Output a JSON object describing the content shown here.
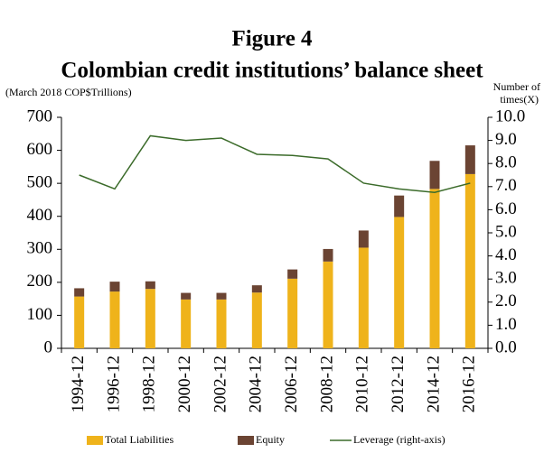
{
  "chart_data": {
    "type": "bar-line",
    "title": "Figure 4",
    "subtitle": "Colombian credit institutions’ balance sheet",
    "ylabel": "(March 2018 COP$Trillions)",
    "y2label": [
      "Number of",
      "times(X)"
    ],
    "categories": [
      "1994-12",
      "1996-12",
      "1998-12",
      "2000-12",
      "2002-12",
      "2004-12",
      "2006-12",
      "2008-12",
      "2010-12",
      "2012-12",
      "2014-12",
      "2016-12"
    ],
    "series": [
      {
        "name": "Total Liabilities",
        "type": "bar",
        "color": "#efb31b",
        "values": [
          157,
          172,
          180,
          148,
          148,
          169,
          211,
          263,
          305,
          398,
          483,
          528
        ]
      },
      {
        "name": "Equity",
        "type": "bar",
        "color": "#6b4433",
        "values": [
          25,
          30,
          23,
          20,
          20,
          22,
          28,
          38,
          52,
          65,
          85,
          87
        ]
      },
      {
        "name": "Leverage (right-axis)",
        "type": "line",
        "axis": "y2",
        "color": "#3b6b2a",
        "values": [
          7.5,
          6.9,
          9.2,
          9.0,
          9.1,
          8.4,
          8.35,
          8.2,
          7.15,
          6.9,
          6.75,
          7.15
        ]
      }
    ],
    "ylim": [
      0,
      700
    ],
    "yticks": [
      0,
      100,
      200,
      300,
      400,
      500,
      600,
      700
    ],
    "y2lim": [
      0,
      10
    ],
    "y2ticks": [
      {
        "value": 0,
        "label": "0.0"
      },
      {
        "value": 1,
        "label": "1.0"
      },
      {
        "value": 2,
        "label": "2.0"
      },
      {
        "value": 3,
        "label": "3.0"
      },
      {
        "value": 4,
        "label": "4.0"
      },
      {
        "value": 5,
        "label": "5.0"
      },
      {
        "value": 6,
        "label": "6.0"
      },
      {
        "value": 7,
        "label": "7.0"
      },
      {
        "value": 8,
        "label": "8.0"
      },
      {
        "value": 9,
        "label": "9.0"
      },
      {
        "value": 10,
        "label": "10.0"
      }
    ],
    "stacked": true
  }
}
